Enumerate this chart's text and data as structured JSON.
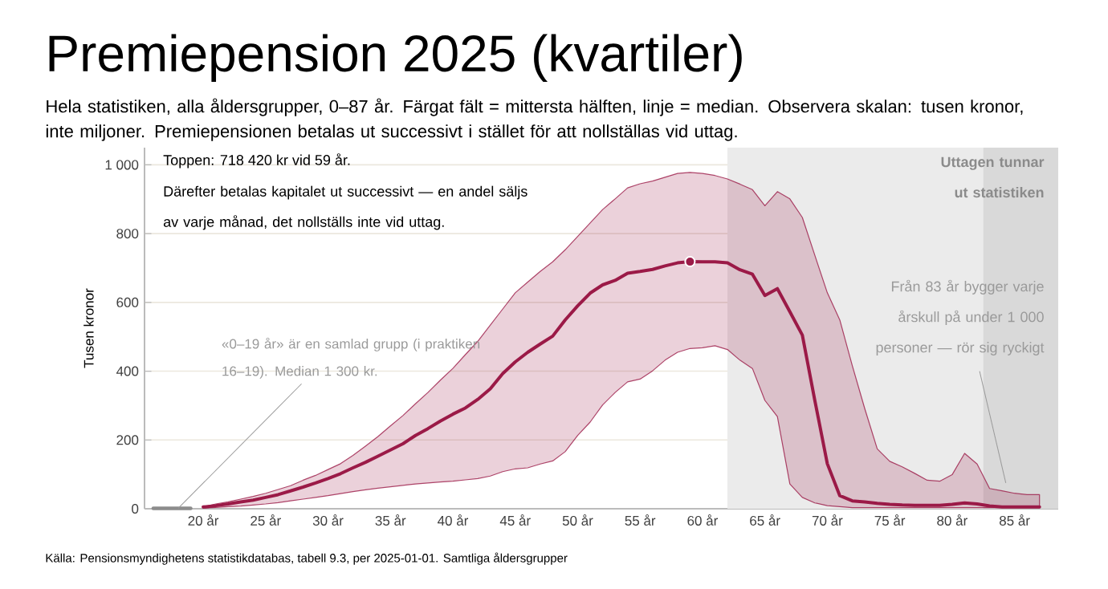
{
  "chart_data": {
    "type": "line",
    "title": "Premiepension 2025 (kvartiler)",
    "subtitle": "Hela statistiken, alla åldersgrupper, 0–87 år. Färgat fält = mittersta hälften, linje = median. Observera skalan: tusen kronor, inte miljoner. Premiepensionen betalas ut successivt i stället för att nollställas vid uttag.",
    "ylabel": "Tusen kronor",
    "x": [
      20,
      21,
      22,
      23,
      24,
      25,
      26,
      27,
      28,
      29,
      30,
      31,
      32,
      33,
      34,
      35,
      36,
      37,
      38,
      39,
      40,
      41,
      42,
      43,
      44,
      45,
      46,
      47,
      48,
      49,
      50,
      51,
      52,
      53,
      54,
      55,
      56,
      57,
      58,
      59,
      60,
      61,
      62,
      63,
      64,
      65,
      66,
      67,
      68,
      69,
      70,
      71,
      72,
      73,
      74,
      75,
      76,
      77,
      78,
      79,
      80,
      81,
      82,
      83,
      84,
      85,
      86,
      87
    ],
    "series": [
      {
        "color": "#8c8c8c",
        "x": [
          16,
          19
        ],
        "values": [
          1.3,
          1.3
        ]
      },
      {
        "color": "#9b1a47",
        "values": [
          5,
          9,
          14,
          20,
          25,
          33,
          41,
          52,
          63,
          75,
          88,
          102,
          119,
          135,
          153,
          171,
          189,
          213,
          233,
          255,
          275,
          293,
          318,
          349,
          393,
          427,
          455,
          479,
          502,
          549,
          590,
          627,
          651,
          664,
          685,
          690,
          696,
          706,
          715,
          718.42,
          718,
          718,
          715,
          695,
          682,
          620,
          640,
          573,
          505,
          315,
          131,
          38,
          23,
          20,
          16,
          13,
          11,
          10,
          10,
          10,
          13,
          17,
          14,
          8,
          5,
          5,
          5,
          5
        ],
        "lower": [
          2,
          4,
          6,
          8,
          11,
          14,
          18,
          23,
          28,
          33,
          38,
          44,
          50,
          55,
          60,
          64,
          68,
          72,
          75,
          78,
          80,
          84,
          88,
          95,
          108,
          116,
          119,
          130,
          139,
          166,
          213,
          252,
          302,
          338,
          369,
          377,
          401,
          432,
          455,
          466,
          468,
          474,
          463,
          432,
          408,
          315,
          268,
          72,
          33,
          17,
          9,
          6,
          3,
          3,
          3,
          3,
          3,
          3,
          3,
          3,
          3,
          3,
          3,
          3,
          3,
          3,
          3,
          3
        ],
        "upper": [
          5,
          14,
          20,
          28,
          36,
          45,
          56,
          67,
          83,
          97,
          114,
          131,
          155,
          182,
          210,
          241,
          271,
          305,
          338,
          374,
          408,
          448,
          487,
          534,
          581,
          628,
          659,
          690,
          718,
          753,
          792,
          831,
          870,
          901,
          933,
          945,
          953,
          964,
          975,
          978,
          975,
          969,
          959,
          944,
          928,
          881,
          922,
          901,
          847,
          737,
          628,
          549,
          416,
          291,
          174,
          138,
          122,
          103,
          83,
          80,
          99,
          161,
          130,
          59,
          52,
          45,
          41,
          41
        ]
      },
      {
        "type": "scatter",
        "color": "#9b1a47",
        "marker": "circle",
        "x": [
          59
        ],
        "values": [
          718.42
        ]
      }
    ],
    "xlim": [
      15.3,
      88.5
    ],
    "ylim": [
      0,
      1050
    ],
    "xticks": [
      {
        "value": 20,
        "label": "20 år"
      },
      {
        "value": 25,
        "label": "25 år"
      },
      {
        "value": 30,
        "label": "30 år"
      },
      {
        "value": 35,
        "label": "35 år"
      },
      {
        "value": 40,
        "label": "40 år"
      },
      {
        "value": 45,
        "label": "45 år"
      },
      {
        "value": 50,
        "label": "50 år"
      },
      {
        "value": 55,
        "label": "55 år"
      },
      {
        "value": 60,
        "label": "60 år"
      },
      {
        "value": 65,
        "label": "65 år"
      },
      {
        "value": 70,
        "label": "70 år"
      },
      {
        "value": 75,
        "label": "75 år"
      },
      {
        "value": 80,
        "label": "80 år"
      },
      {
        "value": 85,
        "label": "85 år"
      }
    ],
    "yticks": [
      0,
      200,
      400,
      600,
      800,
      {
        "value": 1000,
        "label": "1 000"
      }
    ],
    "grid": "y",
    "bands": [
      {
        "axis": "x",
        "from": 62,
        "to": 88.5,
        "label": "Uttagen tunnar ut statistiken",
        "color": "#ebebeb"
      },
      {
        "axis": "x",
        "from": 82.5,
        "to": 88.5,
        "label": "Från 83 år bygger varje årskull på under 1 000 personer — rör sig ryckigt",
        "color": "#d9d9d9"
      }
    ],
    "annotations": [
      "Toppen: 718 420 kr vid 59 år.",
      "Därefter betalas kapitalet ut successivt — en andel säljs av varje månad, det nollställs inte vid uttag.",
      {
        "text": "«0–19 år» är en samlad grupp (i praktiken 16–19). Median 1 300 kr.",
        "x": 18,
        "y": 1.3
      },
      "Källa: Pensionsmyndighetens statistikdatabas, tabell 9.3, per 2025-01-01. Samtliga åldersgrupper"
    ]
  }
}
